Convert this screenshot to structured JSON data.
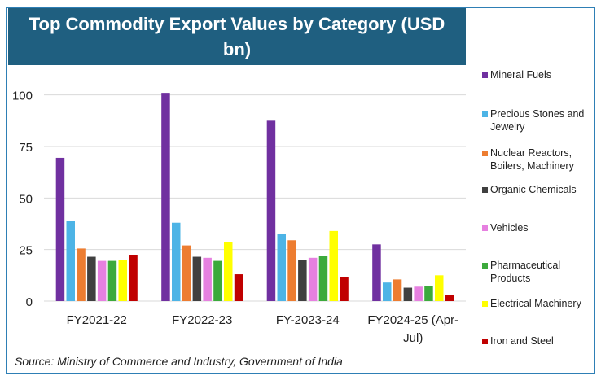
{
  "chart_data": {
    "type": "bar",
    "title": "Top Commodity Export Values by Category (USD bn)",
    "categories": [
      "FY2021-22",
      "FY2022-23",
      "FY-2023-24",
      "FY2024-25 (Apr-Jul)"
    ],
    "category_lines": [
      [
        "FY2021-22"
      ],
      [
        "FY2022-23"
      ],
      [
        "FY-2023-24"
      ],
      [
        "FY2024-25 (Apr-",
        "Jul)"
      ]
    ],
    "series": [
      {
        "name": "Mineral Fuels",
        "color": "#7030a0",
        "values": [
          69.5,
          101.0,
          87.5,
          27.5
        ]
      },
      {
        "name": "Precious Stones and Jewelry",
        "color": "#4db4e6",
        "values": [
          39.0,
          38.0,
          32.5,
          9.0
        ]
      },
      {
        "name": "Nuclear Reactors, Boilers, Machinery",
        "color": "#ed7d31",
        "values": [
          25.5,
          27.0,
          29.5,
          10.5
        ]
      },
      {
        "name": "Organic Chemicals",
        "color": "#404040",
        "values": [
          21.5,
          21.5,
          20.0,
          6.5
        ]
      },
      {
        "name": "Vehicles",
        "color": "#e680e0",
        "values": [
          19.5,
          21.0,
          21.0,
          7.0
        ]
      },
      {
        "name": "Pharmaceutical Products",
        "color": "#3caa3c",
        "values": [
          19.5,
          19.5,
          22.0,
          7.5
        ]
      },
      {
        "name": "Electrical Machinery",
        "color": "#ffff00",
        "values": [
          20.0,
          28.5,
          34.0,
          12.5
        ]
      },
      {
        "name": "Iron and Steel",
        "color": "#c00000",
        "values": [
          22.5,
          13.0,
          11.5,
          3.0
        ]
      }
    ],
    "legend_lines": [
      [
        "Mineral Fuels"
      ],
      [
        "Precious Stones and",
        "Jewelry"
      ],
      [
        "Nuclear Reactors,",
        "Boilers, Machinery"
      ],
      [
        "Organic Chemicals"
      ],
      [
        "Vehicles"
      ],
      [
        "Pharmaceutical",
        "Products"
      ],
      [
        "Electrical Machinery"
      ],
      [
        "Iron and Steel"
      ]
    ],
    "yticks": [
      0,
      25,
      50,
      75,
      100
    ],
    "ylim": [
      0,
      105
    ],
    "grid": true,
    "legend_position": "right",
    "source": "Source: Ministry of Commerce and Industry, Government of India"
  }
}
